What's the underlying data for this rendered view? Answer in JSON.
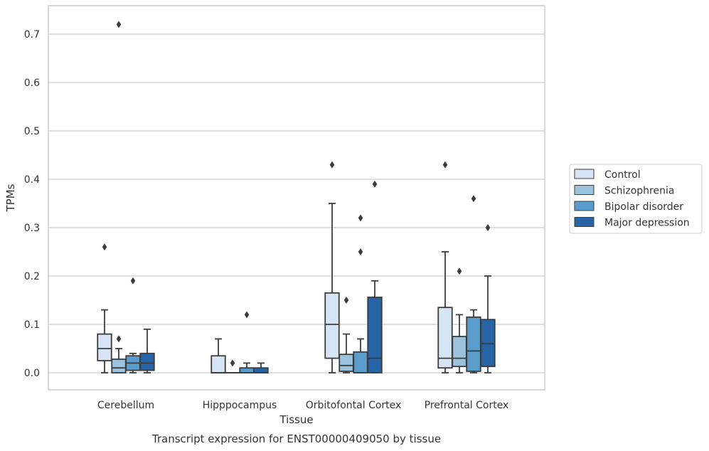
{
  "chart_data": {
    "type": "boxplot",
    "title": "",
    "caption": "Transcript expression for ENST00000409050 by tissue",
    "xlabel": "Tissue",
    "ylabel": "TPMs",
    "ylim": [
      -0.035,
      0.76
    ],
    "yticks": [
      0.0,
      0.1,
      0.2,
      0.3,
      0.4,
      0.5,
      0.6,
      0.7
    ],
    "ytick_labels": [
      "0.0",
      "0.1",
      "0.2",
      "0.3",
      "0.4",
      "0.5",
      "0.6",
      "0.7"
    ],
    "grid": "horizontal",
    "legend_position": "right",
    "categories": [
      "Cerebellum",
      "Hipppocampus",
      "Orbitofontal Cortex",
      "Prefrontal Cortex"
    ],
    "series": [
      {
        "name": "Control",
        "color": "#d6e4f3",
        "boxes": [
          {
            "whislo": 0.0,
            "q1": 0.025,
            "med": 0.05,
            "q3": 0.08,
            "whishi": 0.13,
            "fliers": [
              0.26
            ]
          },
          {
            "whislo": 0.0,
            "q1": 0.0,
            "med": 0.0,
            "q3": 0.035,
            "whishi": 0.07,
            "fliers": []
          },
          {
            "whislo": 0.0,
            "q1": 0.03,
            "med": 0.1,
            "q3": 0.165,
            "whishi": 0.35,
            "fliers": [
              0.43
            ]
          },
          {
            "whislo": 0.0,
            "q1": 0.01,
            "med": 0.03,
            "q3": 0.135,
            "whishi": 0.25,
            "fliers": [
              0.43
            ]
          }
        ]
      },
      {
        "name": "Schizophrenia",
        "color": "#9cc3de",
        "boxes": [
          {
            "whislo": 0.0,
            "q1": 0.0,
            "med": 0.01,
            "q3": 0.028,
            "whishi": 0.05,
            "fliers": [
              0.07
            ]
          },
          {
            "whislo": 0.0,
            "q1": 0.0,
            "med": 0.0,
            "q3": 0.0,
            "whishi": 0.0,
            "fliers": [
              0.02
            ]
          },
          {
            "whislo": 0.0,
            "q1": 0.003,
            "med": 0.015,
            "q3": 0.038,
            "whishi": 0.08,
            "fliers": [
              0.15
            ]
          },
          {
            "whislo": 0.0,
            "q1": 0.013,
            "med": 0.03,
            "q3": 0.075,
            "whishi": 0.12,
            "fliers": [
              0.21
            ]
          }
        ]
      },
      {
        "name": "Bipolar disorder",
        "color": "#5a9ccb",
        "boxes": [
          {
            "whislo": 0.0,
            "q1": 0.005,
            "med": 0.02,
            "q3": 0.035,
            "whishi": 0.04,
            "fliers": [
              0.19
            ]
          },
          {
            "whislo": 0.0,
            "q1": 0.0,
            "med": 0.0,
            "q3": 0.01,
            "whishi": 0.02,
            "fliers": [
              0.12
            ]
          },
          {
            "whislo": 0.0,
            "q1": 0.0,
            "med": 0.0,
            "q3": 0.043,
            "whishi": 0.07,
            "fliers": [
              0.25,
              0.32
            ]
          },
          {
            "whislo": 0.0,
            "q1": 0.003,
            "med": 0.045,
            "q3": 0.115,
            "whishi": 0.13,
            "fliers": [
              0.36
            ]
          }
        ]
      },
      {
        "name": "Major depression",
        "color": "#2664a6",
        "boxes": [
          {
            "whislo": 0.0,
            "q1": 0.005,
            "med": 0.02,
            "q3": 0.04,
            "whishi": 0.09,
            "fliers": []
          },
          {
            "whislo": 0.0,
            "q1": 0.0,
            "med": 0.0,
            "q3": 0.01,
            "whishi": 0.02,
            "fliers": []
          },
          {
            "whislo": 0.0,
            "q1": 0.0,
            "med": 0.03,
            "q3": 0.156,
            "whishi": 0.19,
            "fliers": [
              0.39
            ]
          },
          {
            "whislo": 0.0,
            "q1": 0.013,
            "med": 0.06,
            "q3": 0.11,
            "whishi": 0.2,
            "fliers": [
              0.3
            ]
          }
        ]
      }
    ],
    "extra_fliers": [
      {
        "category": "Cerebellum",
        "series": "Schizophrenia",
        "value": 0.72
      }
    ]
  }
}
